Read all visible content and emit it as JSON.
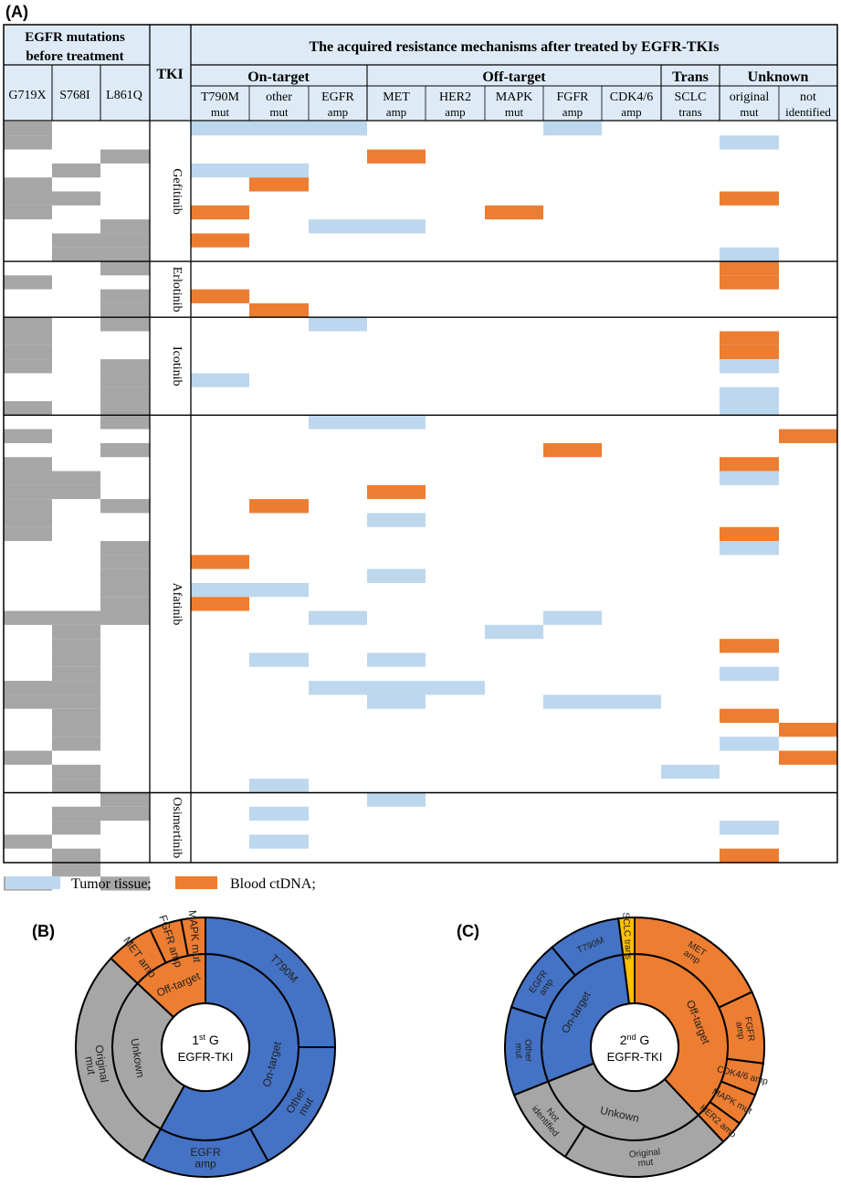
{
  "panel_labels": {
    "a": "(A)",
    "b": "(B)",
    "c": "(C)"
  },
  "header": {
    "mutations_line1": "EGFR mutations",
    "mutations_line2": "before treatment",
    "tki": "TKI",
    "mechanisms": "The acquired resistance mechanisms after treated by EGFR-TKIs",
    "groups": [
      "On-target",
      "Off-target",
      "Trans",
      "Unknown"
    ],
    "mutation_cols": [
      "G719X",
      "S768I",
      "L861Q"
    ],
    "mech_cols": [
      {
        "l1": "T790M",
        "l2": "mut"
      },
      {
        "l1": "other",
        "l2": "mut"
      },
      {
        "l1": "EGFR",
        "l2": "amp"
      },
      {
        "l1": "MET",
        "l2": "amp"
      },
      {
        "l1": "HER2",
        "l2": "amp"
      },
      {
        "l1": "MAPK",
        "l2": "mut"
      },
      {
        "l1": "FGFR",
        "l2": "amp"
      },
      {
        "l1": "CDK4/6",
        "l2": "amp"
      },
      {
        "l1": "SCLC",
        "l2": "trans"
      },
      {
        "l1": "original",
        "l2": "mut"
      },
      {
        "l1": "not",
        "l2": "identified"
      }
    ]
  },
  "tki_groups": [
    {
      "name": "Gefitinib",
      "rows": 10
    },
    {
      "name": "Erlotinib",
      "rows": 4
    },
    {
      "name": "Icotinib",
      "rows": 7
    },
    {
      "name": "Afatinib",
      "rows": 27
    },
    {
      "name": "Osimertinib",
      "rows": 5
    }
  ],
  "colors": {
    "tissue": "#bdd7ee",
    "ctdna": "#ed7d31",
    "mutation": "#a6a6a6",
    "on_target": "#4472c4",
    "off_target": "#ed7d31",
    "unknown": "#a6a6a6",
    "trans": "#ffc000"
  },
  "mutation_cells": [
    [
      0,
      0
    ],
    [
      1,
      0
    ],
    [
      2,
      2
    ],
    [
      3,
      1
    ],
    [
      4,
      0
    ],
    [
      5,
      0
    ],
    [
      5,
      1
    ],
    [
      6,
      0
    ],
    [
      7,
      2
    ],
    [
      8,
      1
    ],
    [
      8,
      2
    ],
    [
      9,
      1
    ],
    [
      9,
      2
    ],
    [
      10,
      2
    ],
    [
      11,
      0
    ],
    [
      12,
      2
    ],
    [
      13,
      2
    ],
    [
      14,
      0
    ],
    [
      14,
      2
    ],
    [
      15,
      0
    ],
    [
      16,
      0
    ],
    [
      17,
      0
    ],
    [
      17,
      2
    ],
    [
      18,
      2
    ],
    [
      19,
      2
    ],
    [
      20,
      0
    ],
    [
      20,
      2
    ],
    [
      21,
      2
    ],
    [
      22,
      0
    ],
    [
      23,
      2
    ],
    [
      24,
      0
    ],
    [
      25,
      0
    ],
    [
      25,
      1
    ],
    [
      26,
      0
    ],
    [
      26,
      1
    ],
    [
      27,
      0
    ],
    [
      27,
      2
    ],
    [
      28,
      0
    ],
    [
      29,
      0
    ],
    [
      30,
      2
    ],
    [
      31,
      2
    ],
    [
      32,
      2
    ],
    [
      33,
      2
    ],
    [
      34,
      2
    ],
    [
      35,
      0
    ],
    [
      35,
      1
    ],
    [
      35,
      2
    ],
    [
      36,
      1
    ],
    [
      37,
      1
    ],
    [
      38,
      1
    ],
    [
      39,
      1
    ],
    [
      40,
      0
    ],
    [
      40,
      1
    ],
    [
      41,
      0
    ],
    [
      41,
      1
    ],
    [
      42,
      1
    ],
    [
      43,
      1
    ],
    [
      44,
      1
    ],
    [
      45,
      0
    ],
    [
      46,
      1
    ],
    [
      47,
      1
    ],
    [
      48,
      2
    ],
    [
      49,
      1
    ],
    [
      49,
      2
    ],
    [
      50,
      1
    ],
    [
      51,
      0
    ],
    [
      52,
      1
    ],
    [
      53,
      1
    ],
    [
      54,
      0
    ],
    [
      54,
      2
    ]
  ],
  "mechanism_cells": [
    [
      0,
      0,
      "t"
    ],
    [
      0,
      1,
      "t"
    ],
    [
      0,
      2,
      "t"
    ],
    [
      0,
      6,
      "t"
    ],
    [
      1,
      9,
      "t"
    ],
    [
      2,
      3,
      "c"
    ],
    [
      3,
      0,
      "t"
    ],
    [
      3,
      1,
      "t"
    ],
    [
      4,
      1,
      "c"
    ],
    [
      5,
      9,
      "c"
    ],
    [
      6,
      0,
      "c"
    ],
    [
      6,
      5,
      "c"
    ],
    [
      7,
      2,
      "t"
    ],
    [
      7,
      3,
      "t"
    ],
    [
      8,
      0,
      "c"
    ],
    [
      9,
      9,
      "t"
    ],
    [
      10,
      9,
      "c"
    ],
    [
      11,
      9,
      "c"
    ],
    [
      12,
      0,
      "c"
    ],
    [
      13,
      1,
      "c"
    ],
    [
      14,
      2,
      "t"
    ],
    [
      15,
      9,
      "c"
    ],
    [
      16,
      9,
      "c"
    ],
    [
      17,
      9,
      "t"
    ],
    [
      18,
      0,
      "t"
    ],
    [
      19,
      9,
      "t"
    ],
    [
      20,
      9,
      "t"
    ],
    [
      21,
      2,
      "t"
    ],
    [
      21,
      3,
      "t"
    ],
    [
      22,
      10,
      "c"
    ],
    [
      23,
      6,
      "c"
    ],
    [
      24,
      9,
      "c"
    ],
    [
      25,
      9,
      "t"
    ],
    [
      26,
      3,
      "c"
    ],
    [
      27,
      1,
      "c"
    ],
    [
      28,
      3,
      "t"
    ],
    [
      29,
      9,
      "c"
    ],
    [
      30,
      9,
      "t"
    ],
    [
      31,
      0,
      "c"
    ],
    [
      32,
      3,
      "t"
    ],
    [
      33,
      0,
      "t"
    ],
    [
      33,
      1,
      "t"
    ],
    [
      34,
      0,
      "c"
    ],
    [
      35,
      2,
      "t"
    ],
    [
      35,
      6,
      "t"
    ],
    [
      36,
      5,
      "t"
    ],
    [
      37,
      9,
      "c"
    ],
    [
      38,
      1,
      "t"
    ],
    [
      38,
      3,
      "t"
    ],
    [
      39,
      9,
      "t"
    ],
    [
      40,
      2,
      "t"
    ],
    [
      40,
      3,
      "t"
    ],
    [
      40,
      4,
      "t"
    ],
    [
      41,
      3,
      "t"
    ],
    [
      41,
      6,
      "t"
    ],
    [
      41,
      7,
      "t"
    ],
    [
      42,
      9,
      "c"
    ],
    [
      43,
      10,
      "c"
    ],
    [
      44,
      9,
      "t"
    ],
    [
      45,
      10,
      "c"
    ],
    [
      46,
      8,
      "t"
    ],
    [
      47,
      1,
      "t"
    ],
    [
      48,
      3,
      "t"
    ],
    [
      49,
      1,
      "t"
    ],
    [
      50,
      9,
      "t"
    ],
    [
      51,
      1,
      "t"
    ],
    [
      52,
      9,
      "c"
    ]
  ],
  "legend": {
    "tissue": "Tumor tissue;",
    "ctdna": "Blood ctDNA;"
  },
  "donut_b": {
    "center_line1_base": "1",
    "center_line1_sup": "st",
    "center_line1_rest": " G",
    "center_line2": "EGFR-TKI",
    "inner": [
      {
        "label": "On-target",
        "value": 58,
        "color": "#4472c4"
      },
      {
        "label": "Unkown",
        "value": 29,
        "color": "#a6a6a6"
      },
      {
        "label": "Off-target",
        "value": 13,
        "color": "#ed7d31"
      }
    ],
    "outer": [
      {
        "label": "T790M",
        "value": 25,
        "color": "#4472c4"
      },
      {
        "label": "Other mut",
        "value": 17,
        "color": "#4472c4"
      },
      {
        "label": "EGFR amp",
        "value": 16,
        "color": "#4472c4"
      },
      {
        "label": "Original mut",
        "value": 29,
        "color": "#a6a6a6"
      },
      {
        "label": "MET amp",
        "value": 6,
        "color": "#ed7d31"
      },
      {
        "label": "FGFR amp",
        "value": 4,
        "color": "#ed7d31"
      },
      {
        "label": "MAPK mut",
        "value": 3,
        "color": "#ed7d31"
      }
    ]
  },
  "donut_c": {
    "center_line1_base": "2",
    "center_line1_sup": "nd",
    "center_line1_rest": " G",
    "center_line2": "EGFR-TKI",
    "inner": [
      {
        "label": "Off-target",
        "value": 38,
        "color": "#ed7d31"
      },
      {
        "label": "Unkown",
        "value": 31,
        "color": "#a6a6a6"
      },
      {
        "label": "On-target",
        "value": 29,
        "color": "#4472c4"
      },
      {
        "label": "",
        "value": 2,
        "color": "#ffc000"
      }
    ],
    "outer": [
      {
        "label": "MET amp",
        "value": 18,
        "color": "#ed7d31"
      },
      {
        "label": "FGFR amp",
        "value": 9,
        "color": "#ed7d31"
      },
      {
        "label": "CDK4/6 amp",
        "value": 4,
        "color": "#ed7d31"
      },
      {
        "label": "MAPK mut",
        "value": 4,
        "color": "#ed7d31"
      },
      {
        "label": "HER2 amp",
        "value": 3,
        "color": "#ed7d31"
      },
      {
        "label": "Original mut",
        "value": 21,
        "color": "#a6a6a6"
      },
      {
        "label": "Not identified",
        "value": 10,
        "color": "#a6a6a6"
      },
      {
        "label": "Other mut",
        "value": 11,
        "color": "#4472c4"
      },
      {
        "label": "EGFR amp",
        "value": 9,
        "color": "#4472c4"
      },
      {
        "label": "T790M",
        "value": 9,
        "color": "#4472c4"
      },
      {
        "label": "SCLC trans",
        "value": 2,
        "color": "#ffc000"
      }
    ]
  }
}
